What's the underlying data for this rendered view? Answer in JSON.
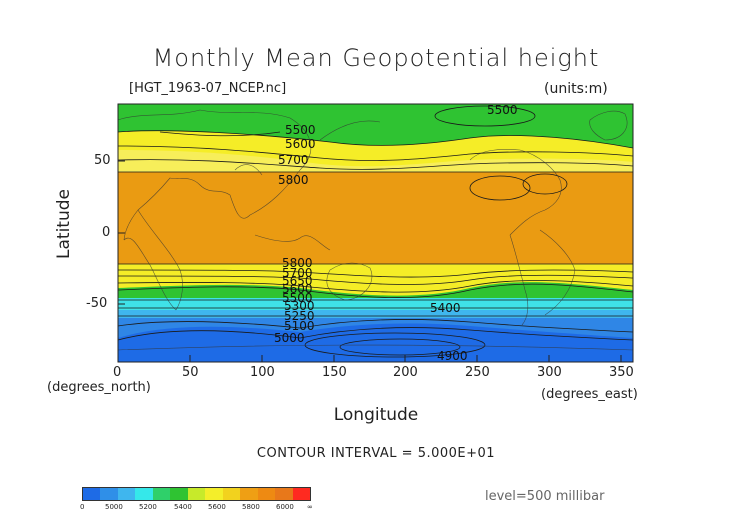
{
  "title": "Monthly Mean Geopotential height",
  "file": "[HGT_1963-07_NCEP.nc]",
  "units": "(units:m)",
  "ylabel": "Latitude",
  "xlabel": "Longitude",
  "y_unit": "(degrees_north)",
  "x_unit": "(degrees_east)",
  "x_ticks": [
    "0",
    "50",
    "100",
    "150",
    "200",
    "250",
    "300",
    "350"
  ],
  "y_ticks": [
    "50",
    "0",
    "-50"
  ],
  "contour_note": "CONTOUR INTERVAL = 5.000E+01",
  "level": "level=500 millibar",
  "contour_labels": [
    "5500",
    "5500",
    "5600",
    "5700",
    "5800",
    "5800",
    "5700",
    "5650",
    "5600",
    "5500",
    "5300",
    "5250",
    "5100",
    "5000",
    "5400",
    "4900"
  ],
  "colorbar": {
    "labels": [
      "0",
      "5000",
      "5200",
      "5400",
      "5600",
      "5800",
      "6000",
      "∞"
    ],
    "colors": [
      "#1e6be6",
      "#2f8fe8",
      "#3fb6ee",
      "#35e8ea",
      "#2fd06a",
      "#2fc332",
      "#c7ea2a",
      "#f4ee2a",
      "#f2d21e",
      "#ef9f14",
      "#ee8a12",
      "#e8781a",
      "#ff2a20"
    ]
  }
}
